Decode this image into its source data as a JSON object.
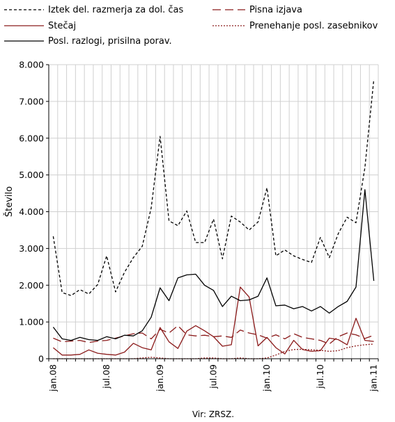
{
  "chart_data": {
    "type": "line",
    "title": "",
    "xlabel": "",
    "ylabel": "Število",
    "ylim": [
      0,
      8000
    ],
    "yticks": [
      0,
      1000,
      2000,
      3000,
      4000,
      5000,
      6000,
      7000,
      8000
    ],
    "ytick_labels": [
      "0",
      "1.000",
      "2.000",
      "3.000",
      "4.000",
      "5.000",
      "6.000",
      "7.000",
      "8.000"
    ],
    "xtick_labels": [
      "jan.08",
      "jul.08",
      "jan.09",
      "jul.09",
      "jan.10",
      "jul.10",
      "jan.11"
    ],
    "xtick_index": [
      0,
      6,
      12,
      18,
      24,
      30,
      36
    ],
    "grid": true,
    "legend_position": "top",
    "source": "Vir: ZRSZ.",
    "categories": [
      "jan.08",
      "feb.08",
      "mar.08",
      "apr.08",
      "maj.08",
      "jun.08",
      "jul.08",
      "avg.08",
      "sep.08",
      "okt.08",
      "nov.08",
      "dec.08",
      "jan.09",
      "feb.09",
      "mar.09",
      "apr.09",
      "maj.09",
      "jun.09",
      "jul.09",
      "avg.09",
      "sep.09",
      "okt.09",
      "nov.09",
      "dec.09",
      "jan.10",
      "feb.10",
      "mar.10",
      "apr.10",
      "maj.10",
      "jun.10",
      "jul.10",
      "avg.10",
      "sep.10",
      "okt.10",
      "nov.10",
      "dec.10",
      "jan.11"
    ],
    "series": [
      {
        "name": "Iztek del. razmerja za dol. čas",
        "color": "#000000",
        "dash": "4,3",
        "values": [
          3330,
          1800,
          1720,
          1880,
          1760,
          2020,
          2800,
          1820,
          2350,
          2750,
          3060,
          4100,
          6050,
          3750,
          3620,
          4020,
          3160,
          3160,
          3800,
          2720,
          3880,
          3720,
          3500,
          3720,
          4650,
          2800,
          2960,
          2800,
          2700,
          2620,
          3300,
          2750,
          3400,
          3850,
          3700,
          5200,
          7600
        ]
      },
      {
        "name": "Pisna izjava",
        "color": "#8b1a1a",
        "dash": "12,6",
        "values": [
          560,
          460,
          480,
          500,
          440,
          480,
          500,
          560,
          620,
          680,
          700,
          540,
          800,
          700,
          900,
          650,
          620,
          640,
          600,
          620,
          580,
          780,
          700,
          650,
          560,
          650,
          540,
          680,
          580,
          540,
          500,
          400,
          600,
          700,
          650,
          550,
          640
        ]
      },
      {
        "name": "Stečaj",
        "color": "#8b1a1a",
        "dash": "",
        "values": [
          300,
          100,
          100,
          120,
          240,
          150,
          120,
          100,
          180,
          420,
          300,
          240,
          850,
          460,
          280,
          750,
          900,
          760,
          600,
          340,
          380,
          1950,
          1680,
          350,
          580,
          300,
          130,
          500,
          250,
          200,
          220,
          560,
          520,
          380,
          1100,
          500,
          470
        ]
      },
      {
        "name": "Prenehanje posl. zasebnikov",
        "color": "#8b1a1a",
        "dash": "2,2",
        "values": [
          0,
          0,
          0,
          0,
          0,
          0,
          0,
          0,
          0,
          0,
          20,
          40,
          20,
          0,
          0,
          0,
          0,
          20,
          20,
          0,
          0,
          20,
          0,
          0,
          20,
          100,
          200,
          250,
          260,
          240,
          230,
          200,
          220,
          300,
          350,
          380,
          400
        ]
      },
      {
        "name": "Posl. razlogi, prisilna porav.",
        "color": "#000000",
        "dash": "",
        "values": [
          860,
          540,
          500,
          580,
          520,
          500,
          600,
          540,
          640,
          620,
          760,
          1130,
          1930,
          1580,
          2200,
          2280,
          2300,
          2000,
          1860,
          1420,
          1700,
          1580,
          1600,
          1700,
          2200,
          1440,
          1460,
          1360,
          1420,
          1300,
          1420,
          1240,
          1420,
          1560,
          1950,
          4600,
          2120
        ]
      }
    ]
  }
}
